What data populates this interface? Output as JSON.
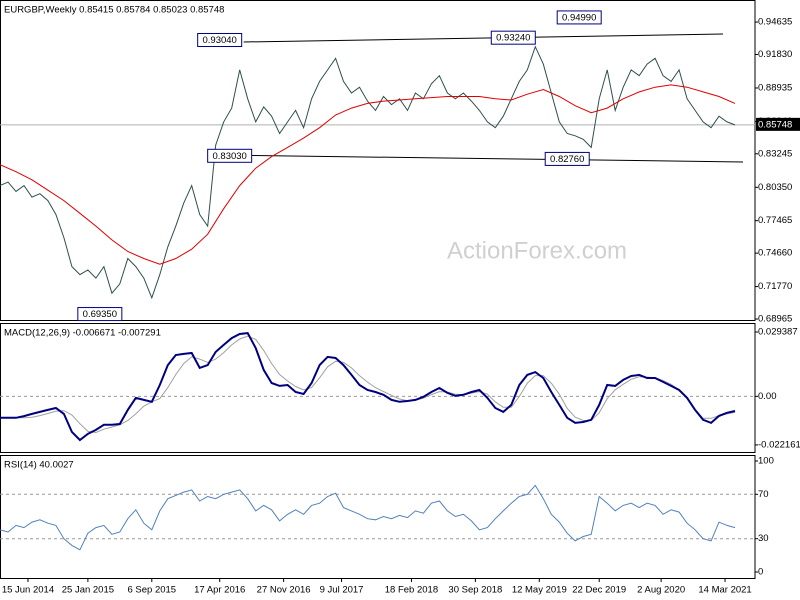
{
  "chart_data": [
    {
      "type": "line",
      "title": "EURGBP,Weekly  0.85415 0.85784 0.85023 0.85748",
      "watermark": "ActionForex.com",
      "xlim": [
        0,
        378
      ],
      "ylim": [
        0.6888,
        0.9654
      ],
      "yticks": [
        0.94635,
        {
          "value": 0.9183,
          "label": "0.91830"
        },
        0.88935,
        {
          "value": 0.8604,
          "label": "0.86040"
        },
        0.83245,
        {
          "value": 0.8035,
          "label": "0.80350"
        },
        0.77465,
        {
          "value": 0.7466,
          "label": "0.74660"
        },
        {
          "value": 0.7177,
          "label": "0.71770"
        },
        0.68965
      ],
      "last_price": {
        "value": 0.85748,
        "label": "0.85748"
      },
      "x": [
        0,
        4,
        8,
        12,
        16,
        20,
        24,
        28,
        32,
        36,
        40,
        44,
        48,
        52,
        56,
        60,
        64,
        68,
        72,
        76,
        80,
        84,
        88,
        92,
        96,
        100,
        104,
        108,
        112,
        116,
        120,
        124,
        128,
        132,
        136,
        140,
        144,
        148,
        152,
        156,
        160,
        164,
        168,
        172,
        176,
        180,
        184,
        188,
        192,
        196,
        200,
        204,
        208,
        212,
        216,
        220,
        224,
        228,
        232,
        236,
        240,
        244,
        248,
        252,
        256,
        260,
        264,
        268,
        272,
        276,
        280,
        284,
        288,
        292,
        296,
        300,
        304,
        308,
        312,
        316,
        320,
        324,
        328,
        332,
        336,
        340,
        344,
        348,
        352,
        356,
        360,
        364,
        368
      ],
      "series": [
        {
          "color": "#2f4f4f",
          "values": [
            0.805,
            0.808,
            0.8,
            0.805,
            0.795,
            0.798,
            0.792,
            0.78,
            0.76,
            0.735,
            0.728,
            0.732,
            0.725,
            0.735,
            0.712,
            0.72,
            0.742,
            0.735,
            0.725,
            0.708,
            0.728,
            0.752,
            0.77,
            0.79,
            0.805,
            0.78,
            0.77,
            0.84,
            0.86,
            0.872,
            0.905,
            0.88,
            0.86,
            0.873,
            0.865,
            0.85,
            0.86,
            0.87,
            0.855,
            0.88,
            0.895,
            0.905,
            0.915,
            0.895,
            0.885,
            0.89,
            0.878,
            0.87,
            0.882,
            0.875,
            0.88,
            0.87,
            0.885,
            0.88,
            0.893,
            0.9,
            0.885,
            0.88,
            0.885,
            0.878,
            0.87,
            0.86,
            0.855,
            0.865,
            0.88,
            0.895,
            0.905,
            0.925,
            0.91,
            0.885,
            0.86,
            0.85,
            0.848,
            0.845,
            0.838,
            0.88,
            0.905,
            0.87,
            0.89,
            0.905,
            0.9,
            0.91,
            0.915,
            0.9,
            0.895,
            0.905,
            0.88,
            0.87,
            0.86,
            0.855,
            0.865,
            0.86,
            0.85748
          ]
        },
        {
          "color": "#e00000",
          "x": [
            0,
            8,
            16,
            24,
            32,
            40,
            48,
            56,
            64,
            72,
            80,
            88,
            96,
            104,
            112,
            120,
            128,
            136,
            144,
            152,
            160,
            168,
            176,
            184,
            192,
            200,
            208,
            216,
            224,
            232,
            240,
            248,
            256,
            264,
            272,
            280,
            288,
            296,
            304,
            312,
            320,
            328,
            336,
            344,
            352,
            360,
            368
          ],
          "values": [
            0.823,
            0.817,
            0.81,
            0.801,
            0.792,
            0.781,
            0.77,
            0.758,
            0.748,
            0.742,
            0.737,
            0.742,
            0.75,
            0.763,
            0.785,
            0.805,
            0.82,
            0.83,
            0.838,
            0.846,
            0.855,
            0.866,
            0.872,
            0.876,
            0.878,
            0.879,
            0.88,
            0.881,
            0.882,
            0.882,
            0.882,
            0.88,
            0.879,
            0.884,
            0.888,
            0.882,
            0.874,
            0.868,
            0.872,
            0.88,
            0.886,
            0.89,
            0.892,
            0.89,
            0.886,
            0.882,
            0.876
          ]
        }
      ],
      "trend_lines": [
        {
          "x": [
            122,
            362
          ],
          "values": [
            0.9291,
            0.936
          ]
        },
        {
          "x": [
            105,
            372
          ],
          "values": [
            0.8315,
            0.8254
          ]
        }
      ],
      "annotations": [
        {
          "x": 122,
          "value": 0.9304,
          "label": "0.93040"
        },
        {
          "x": 269,
          "value": 0.9324,
          "label": "0.93240"
        },
        {
          "x": 302,
          "value": 0.9499,
          "label": "0.94990"
        },
        {
          "x": 127,
          "value": 0.8303,
          "label": "0.83030"
        },
        {
          "x": 296,
          "value": 0.8276,
          "label": "0.82760"
        },
        {
          "x": 62,
          "value": 0.6935,
          "label": "0.69350"
        }
      ]
    },
    {
      "type": "line",
      "title": "MACD(12,26,9) -0.006671 -0.007291",
      "xlim": [
        0,
        378
      ],
      "ylim": [
        -0.0254,
        0.0335
      ],
      "yticks": [
        0.029387,
        {
          "value": 0,
          "label": "0.00"
        },
        -0.022161
      ],
      "levels": [
        0
      ],
      "x": [
        0,
        4,
        8,
        12,
        16,
        20,
        24,
        28,
        32,
        36,
        40,
        44,
        48,
        52,
        56,
        60,
        64,
        68,
        72,
        76,
        80,
        84,
        88,
        92,
        96,
        100,
        104,
        108,
        112,
        116,
        120,
        124,
        128,
        132,
        136,
        140,
        144,
        148,
        152,
        156,
        160,
        164,
        168,
        172,
        176,
        180,
        184,
        188,
        192,
        196,
        200,
        204,
        208,
        212,
        216,
        220,
        224,
        228,
        232,
        236,
        240,
        244,
        248,
        252,
        256,
        260,
        264,
        268,
        272,
        276,
        280,
        284,
        288,
        292,
        296,
        300,
        304,
        308,
        312,
        316,
        320,
        324,
        328,
        332,
        336,
        340,
        344,
        348,
        352,
        356,
        360,
        364,
        368
      ],
      "series": [
        {
          "color": "#a0a0a0",
          "values": [
            -0.0098,
            -0.0098,
            -0.0098,
            -0.0098,
            -0.0095,
            -0.0088,
            -0.0078,
            -0.0068,
            -0.0065,
            -0.0085,
            -0.0125,
            -0.016,
            -0.0165,
            -0.015,
            -0.014,
            -0.013,
            -0.011,
            -0.008,
            -0.0045,
            -0.0025,
            -0.001,
            0.004,
            0.01,
            0.015,
            0.018,
            0.017,
            0.0155,
            0.017,
            0.02,
            0.0235,
            0.0262,
            0.0275,
            0.026,
            0.021,
            0.015,
            0.01,
            0.007,
            0.0045,
            0.003,
            0.004,
            0.0085,
            0.0135,
            0.016,
            0.0155,
            0.013,
            0.0095,
            0.0065,
            0.004,
            0.0022,
            0.0005,
            -0.0012,
            -0.002,
            -0.0018,
            -0.0008,
            0.0008,
            0.0022,
            0.002,
            0.001,
            0.0008,
            0.0015,
            0.0022,
            0.001,
            -0.0025,
            -0.005,
            -0.005,
            0.0,
            0.006,
            0.0095,
            0.0095,
            0.006,
            0.001,
            -0.0055,
            -0.0095,
            -0.011,
            -0.011,
            -0.0075,
            -0.001,
            0.003,
            0.0055,
            0.0078,
            0.009,
            0.0088,
            0.0085,
            0.0072,
            0.0055,
            0.003,
            -0.001,
            -0.006,
            -0.01,
            -0.01,
            -0.0088,
            -0.008,
            -0.0073
          ]
        },
        {
          "color": "#00007f",
          "values": [
            -0.0098,
            -0.0098,
            -0.0098,
            -0.009,
            -0.008,
            -0.0071,
            -0.0062,
            -0.0053,
            -0.008,
            -0.0162,
            -0.0199,
            -0.0171,
            -0.0153,
            -0.013,
            -0.013,
            -0.0126,
            -0.0062,
            -0.0007,
            -0.0016,
            -0.0025,
            0.0052,
            0.0143,
            0.0189,
            0.0194,
            0.0198,
            0.013,
            0.0143,
            0.0203,
            0.0235,
            0.0266,
            0.0285,
            0.0289,
            0.0221,
            0.0121,
            0.0061,
            0.0048,
            0.0052,
            0.002,
            0.0011,
            0.0061,
            0.0143,
            0.018,
            0.0175,
            0.0143,
            0.0098,
            0.0052,
            0.0029,
            0.002,
            0.0007,
            -0.0016,
            -0.0025,
            -0.0021,
            -0.0016,
            -0.0002,
            0.002,
            0.0038,
            0.0016,
            0.0002,
            0.0007,
            0.002,
            0.0029,
            -0.0007,
            -0.0053,
            -0.0071,
            -0.0039,
            0.0052,
            0.0098,
            0.0111,
            0.0084,
            0.002,
            -0.0039,
            -0.0098,
            -0.0121,
            -0.0117,
            -0.0107,
            -0.0039,
            0.0052,
            0.0048,
            0.0075,
            0.0093,
            0.0098,
            0.0084,
            0.0084,
            0.0066,
            0.0048,
            0.0029,
            -0.0007,
            -0.0062,
            -0.0107,
            -0.0121,
            -0.0089,
            -0.0075,
            -0.0067
          ]
        }
      ]
    },
    {
      "type": "line",
      "title": "RSI(14) 40.0027",
      "xlim": [
        0,
        378
      ],
      "ylim": [
        -5.4,
        105.4
      ],
      "yticks": [
        100,
        70,
        30,
        0
      ],
      "levels": [
        70,
        30
      ],
      "xticks": [
        {
          "value": 14,
          "label": "15 Jun 2014"
        },
        {
          "value": 44,
          "label": "25 Jan 2015"
        },
        {
          "value": 76,
          "label": "6 Sep 2015"
        },
        {
          "value": 110,
          "label": "17 Apr 2016"
        },
        {
          "value": 142,
          "label": "27 Nov 2016"
        },
        {
          "value": 171,
          "label": "9 Jul 2017"
        },
        {
          "value": 206,
          "label": "18 Feb 2018"
        },
        {
          "value": 238,
          "label": "30 Sep 2018"
        },
        {
          "value": 270,
          "label": "12 May 2019"
        },
        {
          "value": 300,
          "label": "22 Dec 2019"
        },
        {
          "value": 331,
          "label": "2 Aug 2020"
        },
        {
          "value": 363,
          "label": "14 Mar 2021"
        }
      ],
      "x": [
        0,
        4,
        8,
        12,
        16,
        20,
        24,
        28,
        32,
        36,
        40,
        44,
        48,
        52,
        56,
        60,
        64,
        68,
        72,
        76,
        80,
        84,
        88,
        92,
        96,
        100,
        104,
        108,
        112,
        116,
        120,
        124,
        128,
        132,
        136,
        140,
        144,
        148,
        152,
        156,
        160,
        164,
        168,
        172,
        176,
        180,
        184,
        188,
        192,
        196,
        200,
        204,
        208,
        212,
        216,
        220,
        224,
        228,
        232,
        236,
        240,
        244,
        248,
        252,
        256,
        260,
        264,
        268,
        272,
        276,
        280,
        284,
        288,
        292,
        296,
        300,
        304,
        308,
        312,
        316,
        320,
        324,
        328,
        332,
        336,
        340,
        344,
        348,
        352,
        356,
        360,
        364,
        368
      ],
      "series": [
        {
          "color": "#4f81bd",
          "values": [
            38,
            36,
            42,
            40,
            45,
            47,
            44,
            42,
            30,
            24,
            20,
            35,
            40,
            42,
            34,
            36,
            48,
            56,
            44,
            38,
            55,
            66,
            69,
            72,
            74,
            64,
            68,
            66,
            70,
            72,
            74,
            66,
            55,
            60,
            56,
            46,
            52,
            56,
            52,
            60,
            62,
            68,
            71,
            58,
            55,
            52,
            48,
            47,
            50,
            48,
            51,
            49,
            55,
            53,
            62,
            64,
            55,
            50,
            52,
            46,
            38,
            40,
            48,
            55,
            62,
            68,
            70,
            78,
            66,
            52,
            45,
            35,
            28,
            32,
            34,
            68,
            62,
            55,
            60,
            62,
            58,
            62,
            60,
            52,
            56,
            54,
            44,
            38,
            30,
            28,
            45,
            42,
            40.0027
          ]
        }
      ]
    }
  ]
}
